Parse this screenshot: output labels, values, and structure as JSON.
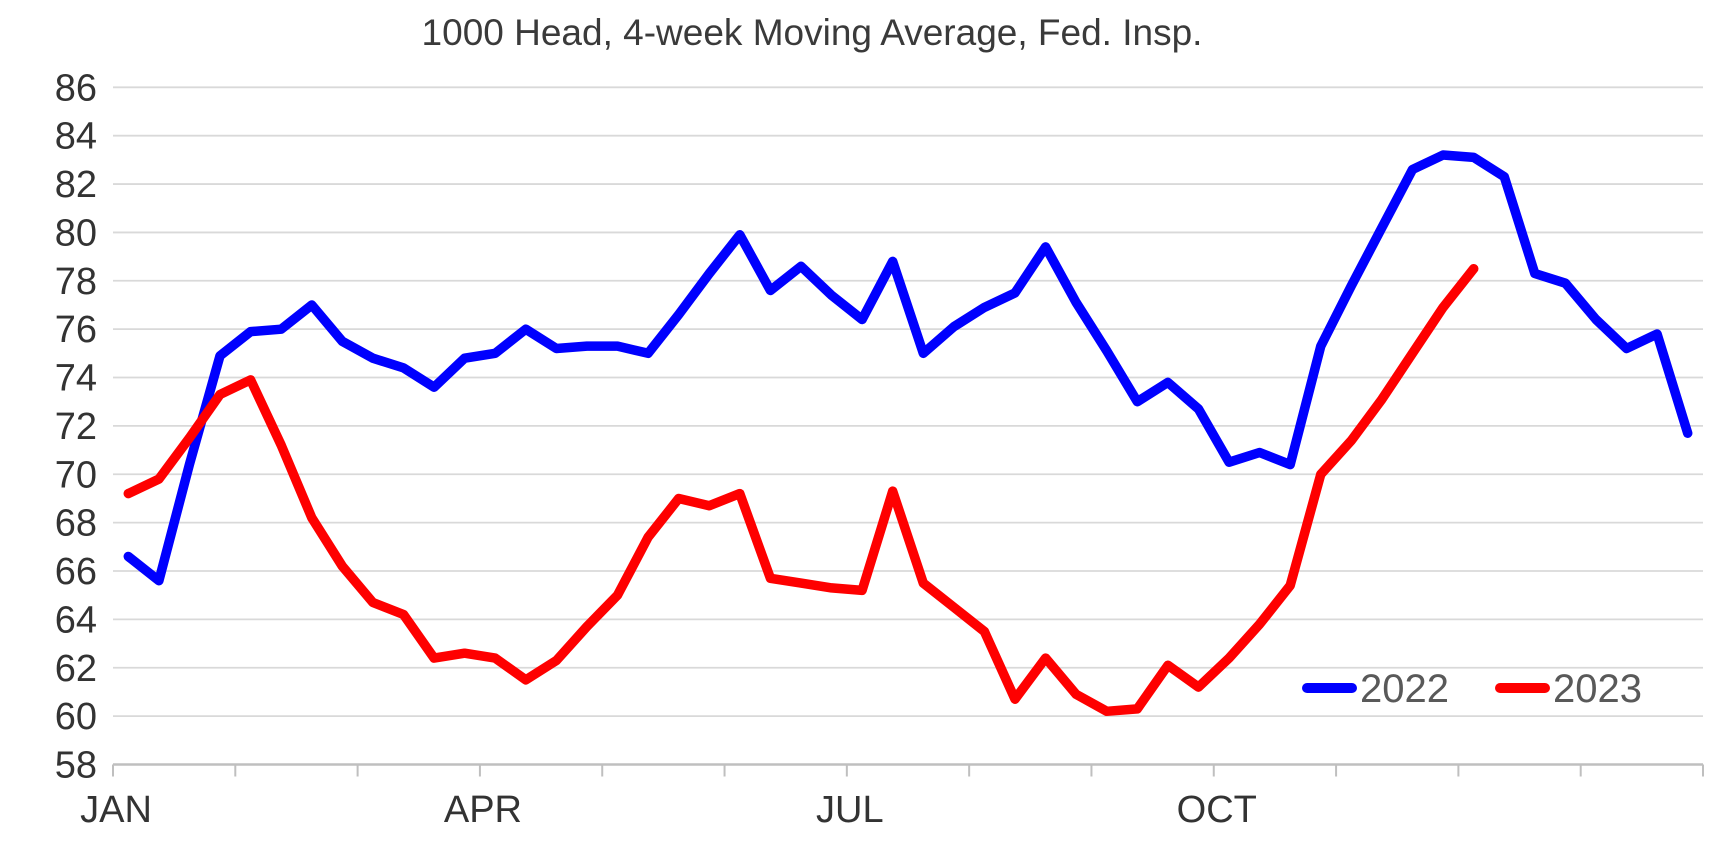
{
  "title": {
    "text": "1000 Head, 4-week Moving Average, Fed. Insp."
  },
  "legend": {
    "position": "inside-bottom-right",
    "text_color": "#595959",
    "items": [
      {
        "label": "2022",
        "color": "#0000fe"
      },
      {
        "label": "2023",
        "color": "#fe0000"
      }
    ]
  },
  "axis": {
    "label_color": "#333333",
    "grid_color": "#d9d9d9",
    "axis_line_color": "#bfbfbf"
  },
  "chart_data": {
    "type": "line",
    "title": "1000 Head, 4-week Moving Average, Fed. Insp.",
    "xlabel": "",
    "ylabel": "",
    "x_unit": "week",
    "ylim": [
      58,
      86
    ],
    "y_ticks": [
      58,
      60,
      62,
      64,
      66,
      68,
      70,
      72,
      74,
      76,
      78,
      80,
      82,
      84,
      86
    ],
    "grid": "horizontal-only",
    "x_slots": 52,
    "x_ticks_every_weeks": 4,
    "x_month_labels": [
      {
        "label": "JAN",
        "tick_index": 0
      },
      {
        "label": "APR",
        "tick_index": 3
      },
      {
        "label": "JUL",
        "tick_index": 6
      },
      {
        "label": "OCT",
        "tick_index": 9
      }
    ],
    "legend_position": "inside-bottom-right",
    "series": [
      {
        "name": "2022",
        "color": "#0000fe",
        "week_values": [
          66.6,
          65.6,
          70.4,
          74.9,
          75.9,
          76.0,
          77.0,
          75.5,
          74.8,
          74.4,
          73.6,
          74.8,
          75.0,
          76.0,
          75.2,
          75.3,
          75.3,
          75.0,
          76.6,
          78.3,
          79.9,
          77.6,
          78.6,
          77.4,
          76.4,
          78.8,
          75.0,
          76.1,
          76.9,
          77.5,
          79.4,
          77.1,
          75.1,
          73.0,
          73.8,
          72.7,
          70.5,
          70.9,
          70.4,
          75.3,
          77.8,
          80.2,
          82.6,
          83.2,
          83.1,
          82.3,
          78.3,
          77.9,
          76.4,
          75.2,
          75.8,
          71.7
        ]
      },
      {
        "name": "2023",
        "color": "#fe0000",
        "week_values": [
          69.2,
          69.8,
          71.5,
          73.3,
          73.9,
          71.2,
          68.2,
          66.2,
          64.7,
          64.2,
          62.4,
          62.6,
          62.4,
          61.5,
          62.3,
          63.7,
          65.0,
          67.4,
          69.0,
          68.7,
          69.2,
          65.7,
          65.5,
          65.3,
          65.2,
          69.3,
          65.5,
          64.5,
          63.5,
          60.7,
          62.4,
          60.9,
          60.2,
          60.3,
          62.1,
          61.2,
          62.4,
          63.8,
          65.4,
          70.0,
          71.4,
          73.1,
          75.0,
          76.9,
          78.5
        ]
      }
    ]
  }
}
